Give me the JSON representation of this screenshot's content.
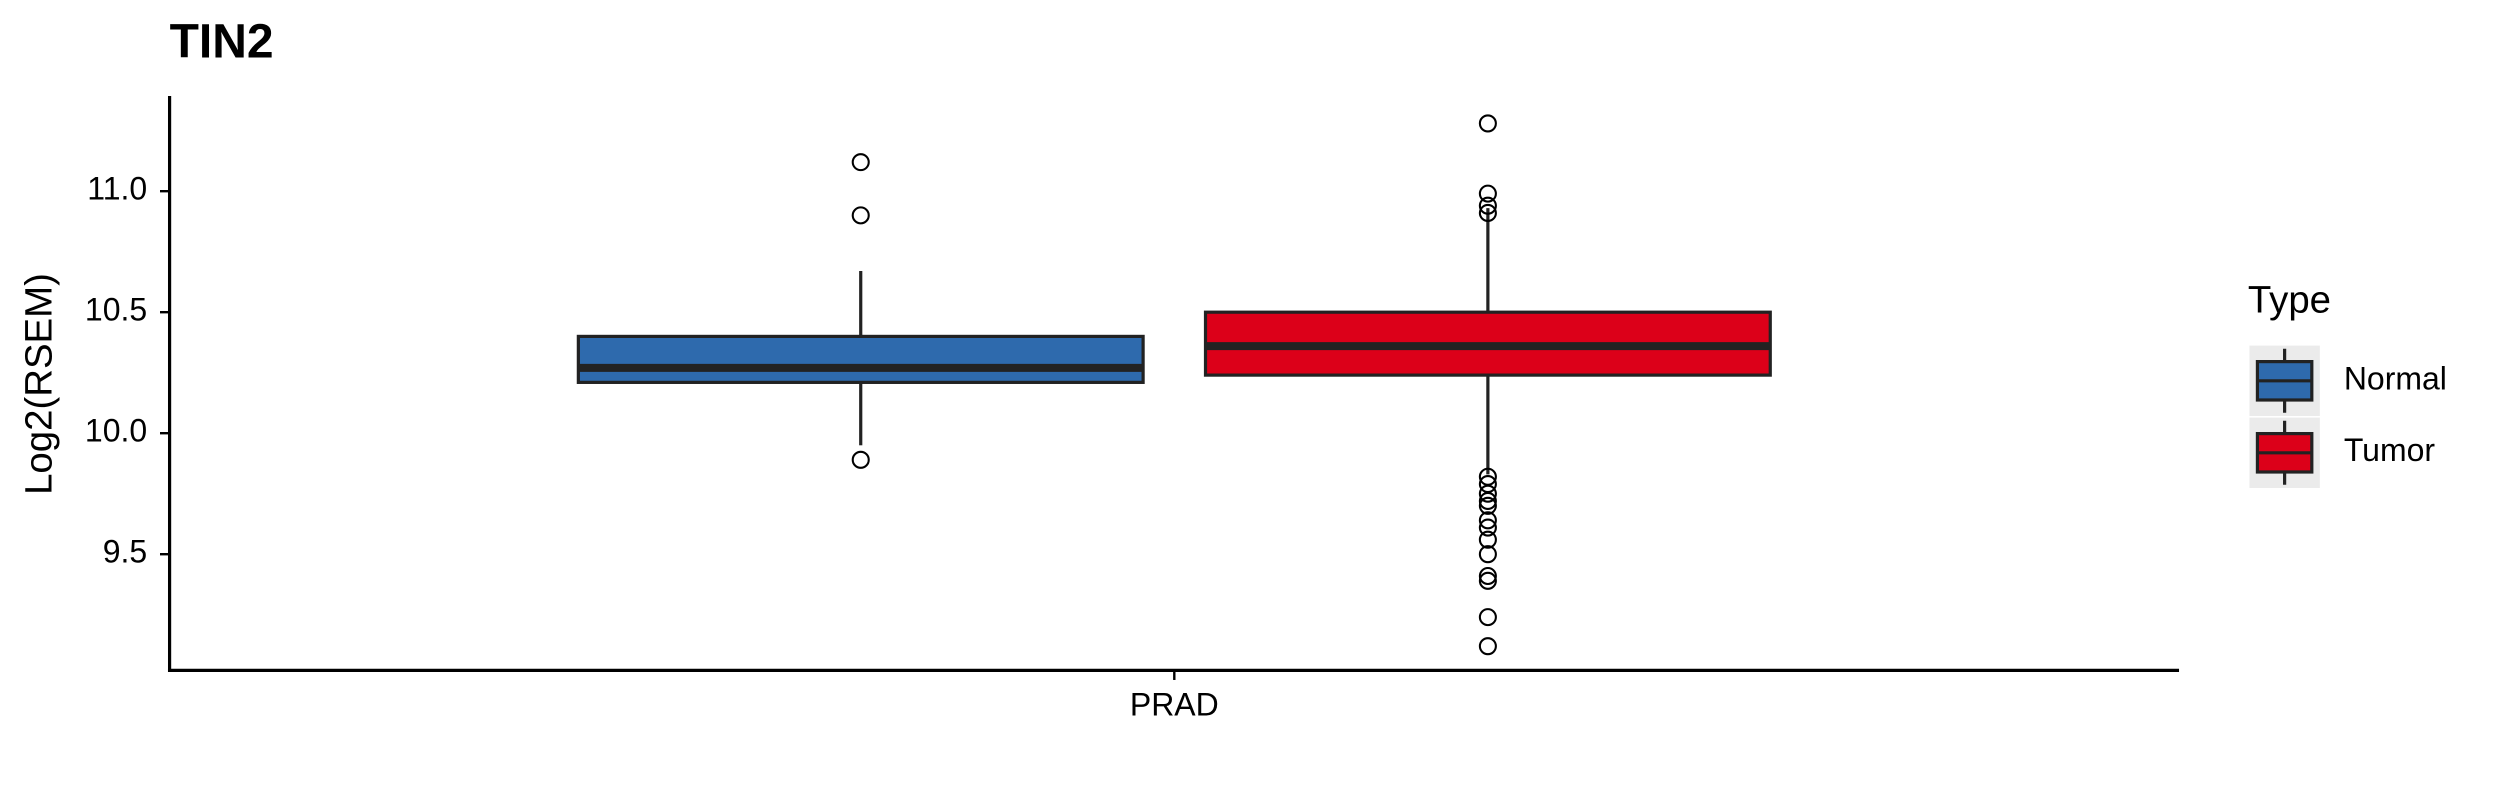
{
  "chart_data": {
    "type": "box",
    "title": "TIN2",
    "y_label": "Log2(RSEM)",
    "categories": [
      "PRAD"
    ],
    "legend_title": "Type",
    "ylim": [
      9.02,
      11.38
    ],
    "yticks": [
      {
        "value": 9.5,
        "label": "9.5"
      },
      {
        "value": 10,
        "label": "10.0"
      },
      {
        "value": 10.5,
        "label": "10.5"
      },
      {
        "value": 11,
        "label": "11.0"
      }
    ],
    "series": [
      {
        "name": "Normal",
        "color": "#2e6aad",
        "q1": 10.21,
        "median": 10.27,
        "q3": 10.4,
        "whisker_low": 9.95,
        "whisker_high": 10.67,
        "outliers": [
          11.12,
          10.9,
          9.89
        ]
      },
      {
        "name": "Tumor",
        "color": "#dc0019",
        "q1": 10.24,
        "median": 10.36,
        "q3": 10.5,
        "whisker_low": 9.83,
        "whisker_high": 10.93,
        "outliers": [
          11.28,
          10.99,
          10.94,
          10.91,
          9.82,
          9.79,
          9.75,
          9.72,
          9.7,
          9.64,
          9.61,
          9.56,
          9.5,
          9.41,
          9.39,
          9.24,
          9.12
        ]
      }
    ]
  }
}
